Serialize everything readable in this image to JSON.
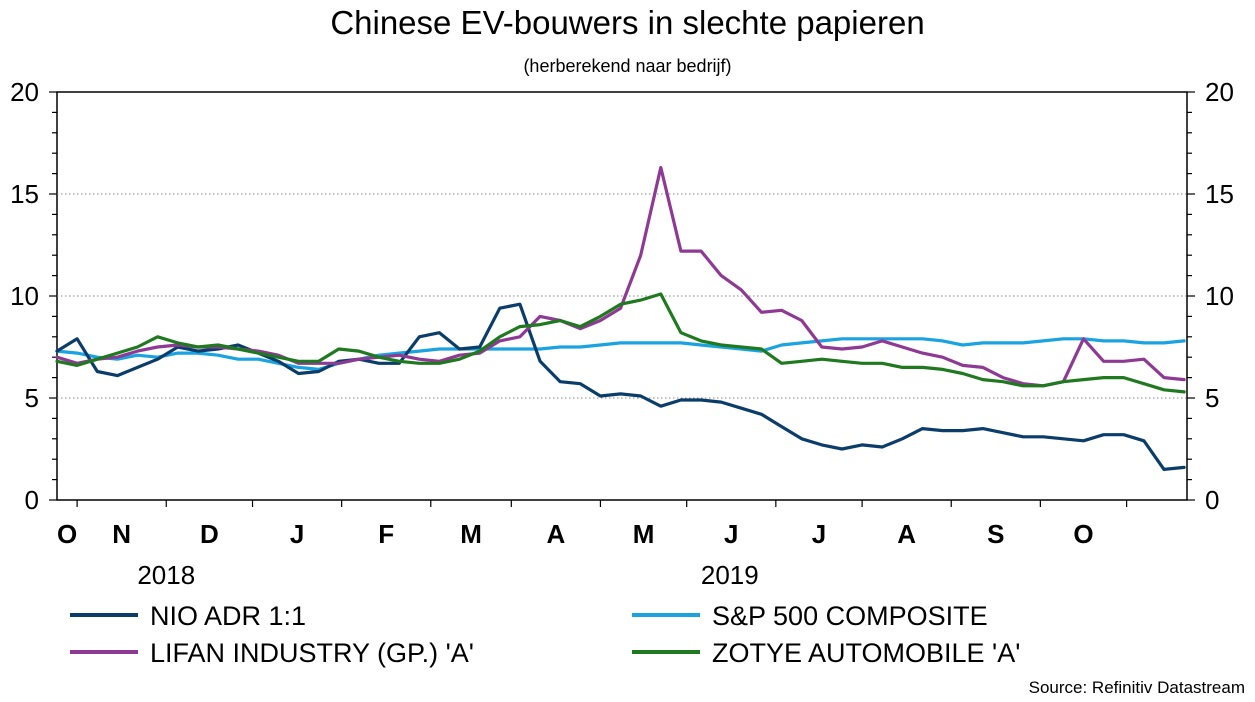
{
  "title": "Chinese EV-bouwers in slechte papieren",
  "subtitle": "(herberekend naar bedrijf)",
  "source": "Source: Refinitiv Datastream",
  "chart_data": {
    "type": "line",
    "title": "Chinese EV-bouwers in slechte papieren",
    "subtitle": "(herberekend naar bedrijf)",
    "x_start": "2018-09-24",
    "x_end": "2019-10-22",
    "ylim": [
      0,
      20
    ],
    "yticks": [
      0,
      5,
      10,
      15,
      20
    ],
    "y_axis_both_sides": true,
    "grid": "horizontal dotted",
    "legend_position": "bottom",
    "month_labels": [
      "O",
      "N",
      "D",
      "J",
      "F",
      "M",
      "A",
      "M",
      "J",
      "J",
      "A",
      "S",
      "O"
    ],
    "year_labels": [
      "2018",
      "2019"
    ],
    "x_dates": [
      "2018-09-24",
      "2018-10-01",
      "2018-10-08",
      "2018-10-15",
      "2018-10-22",
      "2018-10-29",
      "2018-11-05",
      "2018-11-12",
      "2018-11-19",
      "2018-11-26",
      "2018-12-03",
      "2018-12-10",
      "2018-12-17",
      "2018-12-24",
      "2018-12-31",
      "2019-01-07",
      "2019-01-14",
      "2019-01-21",
      "2019-01-28",
      "2019-02-04",
      "2019-02-11",
      "2019-02-18",
      "2019-02-25",
      "2019-03-04",
      "2019-03-11",
      "2019-03-18",
      "2019-03-25",
      "2019-04-01",
      "2019-04-08",
      "2019-04-15",
      "2019-04-22",
      "2019-04-29",
      "2019-05-06",
      "2019-05-13",
      "2019-05-20",
      "2019-05-27",
      "2019-06-03",
      "2019-06-10",
      "2019-06-17",
      "2019-06-24",
      "2019-07-01",
      "2019-07-08",
      "2019-07-15",
      "2019-07-22",
      "2019-07-29",
      "2019-08-05",
      "2019-08-12",
      "2019-08-19",
      "2019-08-26",
      "2019-09-02",
      "2019-09-09",
      "2019-09-16",
      "2019-09-23",
      "2019-09-30",
      "2019-10-07",
      "2019-10-14",
      "2019-10-21"
    ],
    "series": [
      {
        "name": "NIO ADR 1:1",
        "color": "#0b3d6b",
        "values": [
          7.3,
          7.9,
          6.3,
          6.1,
          6.5,
          6.9,
          7.5,
          7.3,
          7.4,
          7.6,
          7.2,
          6.8,
          6.2,
          6.3,
          6.8,
          6.9,
          6.7,
          6.7,
          8.0,
          8.2,
          7.4,
          7.5,
          9.4,
          9.6,
          6.8,
          5.8,
          5.7,
          5.1,
          5.2,
          5.1,
          4.6,
          4.9,
          4.9,
          4.8,
          4.5,
          4.2,
          3.6,
          3.0,
          2.7,
          2.5,
          2.7,
          2.6,
          3.0,
          3.5,
          3.4,
          3.4,
          3.5,
          3.3,
          3.1,
          3.1,
          3.0,
          2.9,
          3.2,
          3.2,
          2.9,
          1.5,
          1.6
        ]
      },
      {
        "name": "S&P 500 COMPOSITE",
        "color": "#1aa3e0",
        "values": [
          7.3,
          7.2,
          7.0,
          6.9,
          7.1,
          7.0,
          7.2,
          7.2,
          7.1,
          6.9,
          6.9,
          6.7,
          6.5,
          6.4,
          6.7,
          6.9,
          7.1,
          7.2,
          7.3,
          7.4,
          7.4,
          7.4,
          7.4,
          7.4,
          7.4,
          7.5,
          7.5,
          7.6,
          7.7,
          7.7,
          7.7,
          7.7,
          7.6,
          7.5,
          7.4,
          7.3,
          7.6,
          7.7,
          7.8,
          7.9,
          7.9,
          7.9,
          7.9,
          7.9,
          7.8,
          7.6,
          7.7,
          7.7,
          7.7,
          7.8,
          7.9,
          7.9,
          7.8,
          7.8,
          7.7,
          7.7,
          7.8
        ]
      },
      {
        "name": "LIFAN INDUSTRY (GP.) 'A'",
        "color": "#8e3a94",
        "values": [
          7.0,
          6.7,
          6.9,
          7.0,
          7.3,
          7.5,
          7.6,
          7.5,
          7.5,
          7.4,
          7.3,
          7.1,
          6.7,
          6.7,
          6.7,
          6.9,
          7.0,
          7.1,
          6.9,
          6.8,
          7.1,
          7.2,
          7.8,
          8.0,
          9.0,
          8.8,
          8.4,
          8.8,
          9.4,
          12.0,
          16.3,
          12.2,
          12.2,
          11.0,
          10.3,
          9.2,
          9.3,
          8.8,
          7.5,
          7.4,
          7.5,
          7.8,
          7.5,
          7.2,
          7.0,
          6.6,
          6.5,
          6.0,
          5.7,
          5.6,
          5.8,
          7.9,
          6.8,
          6.8,
          6.9,
          6.0,
          5.9
        ]
      },
      {
        "name": "ZOTYE AUTOMOBILE 'A'",
        "color": "#1f7a1f",
        "values": [
          6.8,
          6.6,
          6.9,
          7.2,
          7.5,
          8.0,
          7.7,
          7.5,
          7.6,
          7.4,
          7.2,
          7.0,
          6.8,
          6.8,
          7.4,
          7.3,
          7.0,
          6.8,
          6.7,
          6.7,
          6.9,
          7.3,
          8.0,
          8.5,
          8.6,
          8.8,
          8.5,
          9.0,
          9.6,
          9.8,
          10.1,
          8.2,
          7.8,
          7.6,
          7.5,
          7.4,
          6.7,
          6.8,
          6.9,
          6.8,
          6.7,
          6.7,
          6.5,
          6.5,
          6.4,
          6.2,
          5.9,
          5.8,
          5.6,
          5.6,
          5.8,
          5.9,
          6.0,
          6.0,
          5.7,
          5.4,
          5.3
        ]
      }
    ]
  }
}
